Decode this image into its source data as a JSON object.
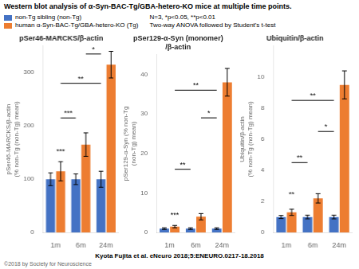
{
  "title": "Western blot analysis of α-Syn-BAC-Tg/GBA-hetero-KO mice at multiple time points.",
  "annotations": [
    "N=3, *p<0.05, **p<0.01\nTwo-way ANOVA followed by Student's t-test",
    "Kyota Fujita et al. eNeuro 2018;5:ENEURO.0217-18.2018",
    "©2018 by Society for Neuroscience"
  ],
  "chart_data": [
    {
      "type": "bar",
      "title": "pSer46-MARCKS/β-actin",
      "ylabel": "pSer46-MARCKS/β-actin\n(% non-Tg (non-Tg) mean)",
      "categories": [
        "1m",
        "6m",
        "24m"
      ],
      "series": [
        {
          "name": "non-Tg sibling (non-Tg)",
          "color": "#4472c4",
          "values": [
            100,
            100,
            100
          ],
          "errors": [
            12,
            10,
            15
          ]
        },
        {
          "name": "human α-Syn-BAC-Tg/GBA-hetero-KO (Tg)",
          "color": "#ed7d31",
          "values": [
            115,
            165,
            315
          ],
          "errors": [
            18,
            22,
            25
          ]
        }
      ],
      "ylim": [
        0,
        350
      ],
      "yticks": [
        0,
        100,
        200,
        300
      ],
      "grid": false,
      "legend": "top",
      "annotations": [
        {
          "text": "***",
          "category": "1m",
          "y": 145
        },
        {
          "text": "***",
          "from": "1m",
          "to": "6m",
          "y": 215
        },
        {
          "text": "**",
          "from": "1m",
          "to": "24m",
          "y": 280
        },
        {
          "text": "*",
          "from": "6m",
          "to": "24m",
          "y": 335
        }
      ]
    },
    {
      "type": "bar",
      "title": "pSer129-α-Syn (monomer)\n/β-actin",
      "ylabel": "pSer129-α-Syn (% non-Tg\n(non-Tg) mean)",
      "categories": [
        "1m",
        "6m",
        "24m"
      ],
      "series": [
        {
          "name": "non-Tg sibling (non-Tg)",
          "color": "#4472c4",
          "values": [
            1,
            1,
            1
          ],
          "errors": [
            0.2,
            0.2,
            0.2
          ]
        },
        {
          "name": "human α-Syn-BAC-Tg/GBA-hetero-KO (Tg)",
          "color": "#ed7d31",
          "values": [
            1.5,
            4,
            38
          ],
          "errors": [
            0.3,
            0.8,
            3.5
          ]
        }
      ],
      "ylim": [
        0,
        45
      ],
      "yticks": [
        0,
        10,
        20,
        30,
        40
      ],
      "grid": false,
      "annotations": [
        {
          "text": "***",
          "category": "1m",
          "y": 3.5
        },
        {
          "text": "**",
          "from": "1m",
          "to": "6m",
          "y": 16
        },
        {
          "text": "**",
          "from": "1m",
          "to": "24m",
          "y": 36
        },
        {
          "text": "*",
          "from": "6m",
          "to": "24m",
          "y": 29
        }
      ]
    },
    {
      "type": "bar",
      "title": "Ubiquitin/β-actin",
      "ylabel": "Ubiquitin/β-actin\n(% non-Tg (non-Tg) mean)",
      "categories": [
        "1m",
        "6m",
        "24m"
      ],
      "series": [
        {
          "name": "non-Tg sibling (non-Tg)",
          "color": "#4472c4",
          "values": [
            1,
            1,
            1
          ],
          "errors": [
            0.1,
            0.12,
            0.12
          ]
        },
        {
          "name": "human α-Syn-BAC-Tg/GBA-hetero-KO (Tg)",
          "color": "#ed7d31",
          "values": [
            1.3,
            2.2,
            9.5
          ],
          "errors": [
            0.2,
            0.3,
            0.9
          ]
        }
      ],
      "ylim": [
        0,
        12
      ],
      "yticks": [
        0,
        2,
        4,
        6,
        8,
        10
      ],
      "grid": false,
      "annotations": [
        {
          "text": "**",
          "category": "1m",
          "y": 2.2
        },
        {
          "text": "**",
          "from": "1m",
          "to": "6m",
          "y": 4.5
        },
        {
          "text": "**",
          "from": "1m",
          "to": "24m",
          "y": 8.5
        },
        {
          "text": "*",
          "from": "6m",
          "to": "24m",
          "y": 6.5
        }
      ]
    }
  ]
}
